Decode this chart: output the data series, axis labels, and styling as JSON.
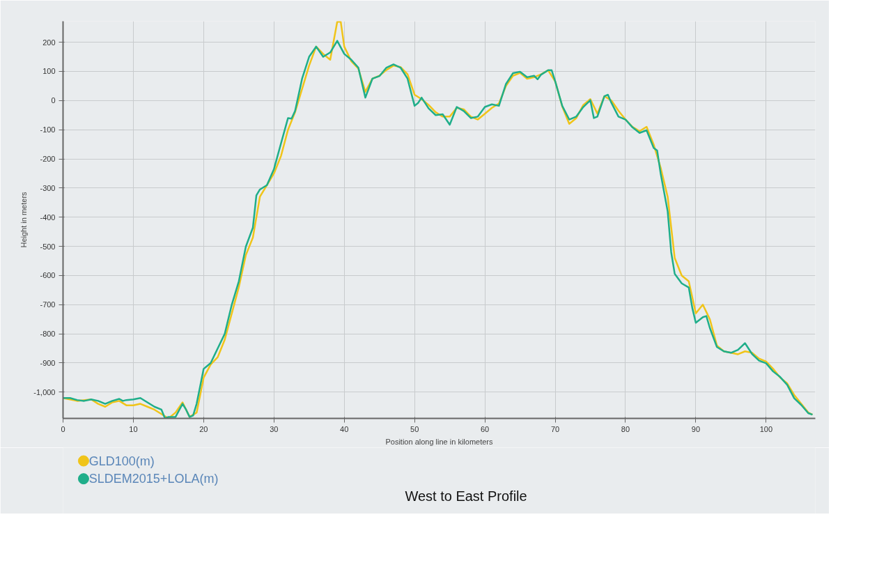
{
  "chart_data": {
    "type": "line",
    "title": "West to East Profile",
    "xlabel": "Position along line in kilometers",
    "ylabel": "Height in meters",
    "xlim": [
      0,
      107
    ],
    "ylim": [
      -1090,
      272
    ],
    "xticks": [
      0,
      10,
      20,
      30,
      40,
      50,
      60,
      70,
      80,
      90,
      100
    ],
    "yticks": [
      {
        "value": -1000,
        "label": "-1,000"
      },
      -900,
      -800,
      -700,
      -600,
      -500,
      -400,
      -300,
      -200,
      -100,
      0,
      100,
      200
    ],
    "grid": true,
    "legend": "bottom left",
    "line_style": "solid",
    "marker": "none",
    "series": [
      {
        "name": "GLD100(m)",
        "color": "#f0c419",
        "x": [
          0,
          2,
          4,
          5,
          6,
          7,
          8,
          9,
          10,
          11,
          12,
          13,
          14,
          15,
          16,
          17,
          18,
          19,
          20,
          21,
          22,
          23,
          24,
          25,
          26,
          27,
          28,
          30,
          31,
          32,
          33,
          34,
          35,
          36,
          37,
          38,
          39,
          39.5,
          40,
          41,
          42,
          43,
          44,
          45,
          46,
          47,
          48,
          49,
          50,
          51,
          52,
          53,
          54,
          55,
          56,
          57,
          58,
          59,
          60,
          61,
          62,
          63,
          64,
          65,
          66,
          67,
          68,
          69,
          70,
          71,
          72,
          73,
          74,
          75,
          76,
          77,
          78,
          79,
          80,
          81,
          82,
          83,
          84,
          85,
          86,
          87,
          88,
          89,
          90,
          91,
          92,
          93,
          94,
          95,
          96,
          97,
          98,
          99,
          100,
          101,
          102,
          103,
          104,
          105,
          106,
          106.6
        ],
        "values": [
          -1020,
          -1030,
          -1025,
          -1040,
          -1050,
          -1035,
          -1030,
          -1045,
          -1045,
          -1040,
          -1050,
          -1060,
          -1075,
          -1090,
          -1070,
          -1035,
          -1085,
          -1070,
          -950,
          -905,
          -880,
          -820,
          -730,
          -640,
          -530,
          -470,
          -330,
          -250,
          -190,
          -100,
          -40,
          40,
          120,
          185,
          160,
          140,
          270,
          270,
          185,
          135,
          110,
          30,
          75,
          85,
          105,
          120,
          115,
          90,
          20,
          5,
          -15,
          -40,
          -55,
          -55,
          -25,
          -30,
          -55,
          -65,
          -45,
          -25,
          -10,
          50,
          85,
          95,
          75,
          80,
          90,
          104,
          66,
          -20,
          -80,
          -60,
          -15,
          5,
          -45,
          15,
          0,
          -35,
          -65,
          -90,
          -105,
          -90,
          -150,
          -230,
          -330,
          -540,
          -600,
          -620,
          -730,
          -700,
          -750,
          -840,
          -860,
          -865,
          -870,
          -860,
          -865,
          -885,
          -895,
          -920,
          -950,
          -970,
          -1010,
          -1040,
          -1070,
          -1077
        ]
      },
      {
        "name": "SLDEM2015+LOLA(m)",
        "color": "#1fae8a",
        "x": [
          0,
          1,
          2,
          3,
          4,
          5,
          6,
          7,
          8,
          8.5,
          9,
          10,
          11,
          12,
          13,
          14,
          14.5,
          15,
          16,
          17,
          17.5,
          18,
          18.5,
          19,
          19.5,
          20,
          20.5,
          21,
          22,
          23,
          24,
          25,
          26,
          27,
          27.5,
          28,
          29,
          30,
          31,
          32,
          32.5,
          33,
          34,
          35,
          36,
          37,
          38,
          39,
          40,
          41,
          42,
          43,
          44,
          45,
          46,
          47,
          48,
          49,
          50,
          50.5,
          51,
          52,
          53,
          54,
          55,
          56,
          57,
          58,
          59,
          60,
          61,
          62,
          63,
          64,
          65,
          66,
          67,
          67.5,
          68,
          69,
          69.5,
          70,
          71,
          72,
          73,
          74,
          75,
          75.5,
          76,
          77,
          77.5,
          78,
          79,
          80,
          81,
          82,
          83,
          84,
          84.5,
          85,
          86,
          86.5,
          87,
          88,
          89,
          89.5,
          90,
          91,
          91.5,
          92,
          93,
          94,
          95,
          96,
          97,
          98,
          99,
          100,
          101,
          102,
          103,
          104,
          105,
          106,
          106.6
        ],
        "values": [
          -1020,
          -1020,
          -1027,
          -1030,
          -1025,
          -1030,
          -1040,
          -1030,
          -1023,
          -1030,
          -1027,
          -1025,
          -1020,
          -1035,
          -1050,
          -1060,
          -1090,
          -1085,
          -1085,
          -1040,
          -1060,
          -1085,
          -1080,
          -1040,
          -980,
          -920,
          -910,
          -900,
          -850,
          -800,
          -700,
          -620,
          -501,
          -436,
          -325,
          -305,
          -290,
          -235,
          -147,
          -60,
          -62,
          -36,
          75,
          150,
          185,
          150,
          165,
          205,
          160,
          140,
          113,
          10,
          75,
          84,
          113,
          124,
          113,
          75,
          -18,
          -8,
          10,
          -27,
          -50,
          -47,
          -83,
          -22,
          -36,
          -60,
          -55,
          -22,
          -13,
          -18,
          57,
          94,
          99,
          80,
          85,
          73,
          89,
          104,
          104,
          66,
          -18,
          -65,
          -55,
          -22,
          1,
          -60,
          -55,
          15,
          20,
          -8,
          -55,
          -65,
          -92,
          -111,
          -102,
          -162,
          -171,
          -250,
          -380,
          -520,
          -594,
          -627,
          -641,
          -711,
          -762,
          -743,
          -739,
          -780,
          -845,
          -860,
          -865,
          -855,
          -832,
          -869,
          -892,
          -901,
          -929,
          -948,
          -975,
          -1021,
          -1044,
          -1072,
          -1077
        ]
      }
    ]
  }
}
